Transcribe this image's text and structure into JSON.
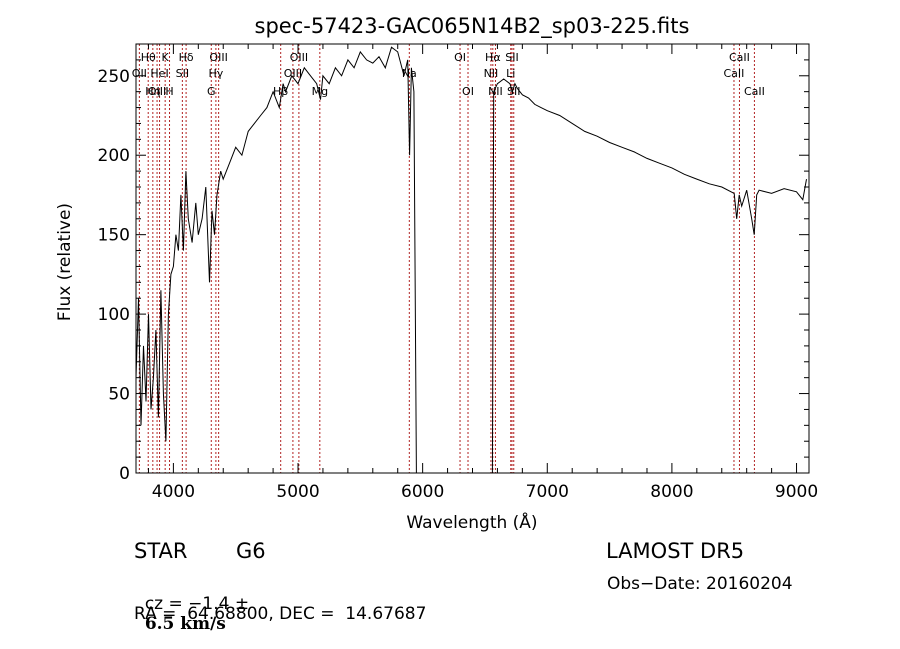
{
  "chart_data": {
    "type": "line",
    "title": "spec-57423-GAC065N14B2_sp03-225.fits",
    "xlabel": "Wavelength (Å)",
    "ylabel": "Flux (relative)",
    "xlim": [
      3700,
      9100
    ],
    "ylim": [
      0,
      270
    ],
    "xticks": [
      4000,
      5000,
      6000,
      7000,
      8000,
      9000
    ],
    "yticks": [
      0,
      50,
      100,
      150,
      200,
      250
    ],
    "grid": false,
    "line_color": "#000000",
    "marker_color": "#b22222",
    "series": [
      {
        "x": [
          3700,
          3720,
          3740,
          3760,
          3780,
          3800,
          3820,
          3840,
          3860,
          3880,
          3900,
          3920,
          3940,
          3960,
          3980,
          4000,
          4020,
          4040,
          4060,
          4080,
          4100,
          4120,
          4150,
          4180,
          4200,
          4230,
          4260,
          4290,
          4310,
          4330,
          4350,
          4380,
          4400,
          4450,
          4500,
          4550,
          4600,
          4650,
          4700,
          4750,
          4800,
          4850,
          4880,
          4900,
          4950,
          5000,
          5050,
          5100,
          5150,
          5180,
          5200,
          5250,
          5300,
          5350,
          5400,
          5450,
          5500,
          5550,
          5600,
          5650,
          5700,
          5750,
          5800,
          5850,
          5880,
          5895,
          5910,
          5930,
          5950,
          6560,
          6570,
          6600,
          6650,
          6700,
          6720,
          6740,
          6760,
          6800,
          6850,
          6900,
          6950,
          7000,
          7100,
          7200,
          7300,
          7400,
          7500,
          7600,
          7700,
          7800,
          7900,
          8000,
          8100,
          8200,
          8300,
          8400,
          8500,
          8520,
          8540,
          8560,
          8600,
          8640,
          8660,
          8680,
          8700,
          8800,
          8900,
          9000,
          9050,
          9080
        ],
        "y": [
          60,
          110,
          30,
          80,
          45,
          100,
          40,
          60,
          90,
          35,
          115,
          50,
          20,
          100,
          125,
          130,
          150,
          140,
          175,
          140,
          190,
          160,
          145,
          170,
          150,
          160,
          180,
          120,
          165,
          150,
          175,
          190,
          185,
          195,
          205,
          200,
          215,
          220,
          225,
          230,
          240,
          230,
          245,
          240,
          250,
          245,
          255,
          250,
          245,
          235,
          250,
          245,
          255,
          250,
          260,
          255,
          265,
          260,
          258,
          262,
          255,
          268,
          265,
          250,
          260,
          200,
          255,
          240,
          0,
          0,
          240,
          245,
          248,
          245,
          240,
          245,
          242,
          238,
          236,
          232,
          230,
          228,
          225,
          220,
          215,
          212,
          208,
          205,
          202,
          198,
          195,
          192,
          188,
          185,
          182,
          180,
          176,
          160,
          175,
          168,
          178,
          160,
          150,
          175,
          178,
          176,
          179,
          177,
          172,
          185
        ]
      }
    ],
    "line_markers": [
      {
        "label": "Hθ",
        "x": 3798,
        "row": 0
      },
      {
        "label": "OII",
        "x": 3727,
        "row": 1
      },
      {
        "label": "OIII",
        "x": 3869,
        "row": 2
      },
      {
        "label": "K",
        "x": 3934,
        "row": 0
      },
      {
        "label": "HeI",
        "x": 3889,
        "row": 1
      },
      {
        "label": "Hη",
        "x": 3835,
        "row": 2
      },
      {
        "label": "H",
        "x": 3969,
        "row": 2
      },
      {
        "label": "Hδ",
        "x": 4102,
        "row": 0
      },
      {
        "label": "SII",
        "x": 4072,
        "row": 1
      },
      {
        "label": "OIII",
        "x": 4363,
        "row": 0
      },
      {
        "label": "Hγ",
        "x": 4341,
        "row": 1
      },
      {
        "label": "G",
        "x": 4304,
        "row": 2
      },
      {
        "label": "OIII",
        "x": 5007,
        "row": 0
      },
      {
        "label": "OIII",
        "x": 4959,
        "row": 1
      },
      {
        "label": "Hβ",
        "x": 4861,
        "row": 2
      },
      {
        "label": "Mg",
        "x": 5175,
        "row": 2
      },
      {
        "label": "Na",
        "x": 5893,
        "row": 1
      },
      {
        "label": "OI",
        "x": 6300,
        "row": 0
      },
      {
        "label": "OI",
        "x": 6364,
        "row": 2
      },
      {
        "label": "Hα",
        "x": 6563,
        "row": 0
      },
      {
        "label": "SII",
        "x": 6717,
        "row": 0
      },
      {
        "label": "NII",
        "x": 6548,
        "row": 1
      },
      {
        "label": "Li",
        "x": 6707,
        "row": 1
      },
      {
        "label": "NII",
        "x": 6584,
        "row": 2
      },
      {
        "label": "SII",
        "x": 6731,
        "row": 2
      },
      {
        "label": "CaII",
        "x": 8542,
        "row": 0
      },
      {
        "label": "CaII",
        "x": 8498,
        "row": 1
      },
      {
        "label": "CaII",
        "x": 8662,
        "row": 2
      }
    ]
  },
  "info": {
    "object_class": "STAR",
    "subclass": "G6",
    "survey": "LAMOST DR5",
    "cz_label": "cz = −1.4 ±",
    "cz_error": "6.5 km/s",
    "obs_date": "Obs−Date: 20160204",
    "coords": "RA =  64.68800, DEC =  14.67687"
  }
}
